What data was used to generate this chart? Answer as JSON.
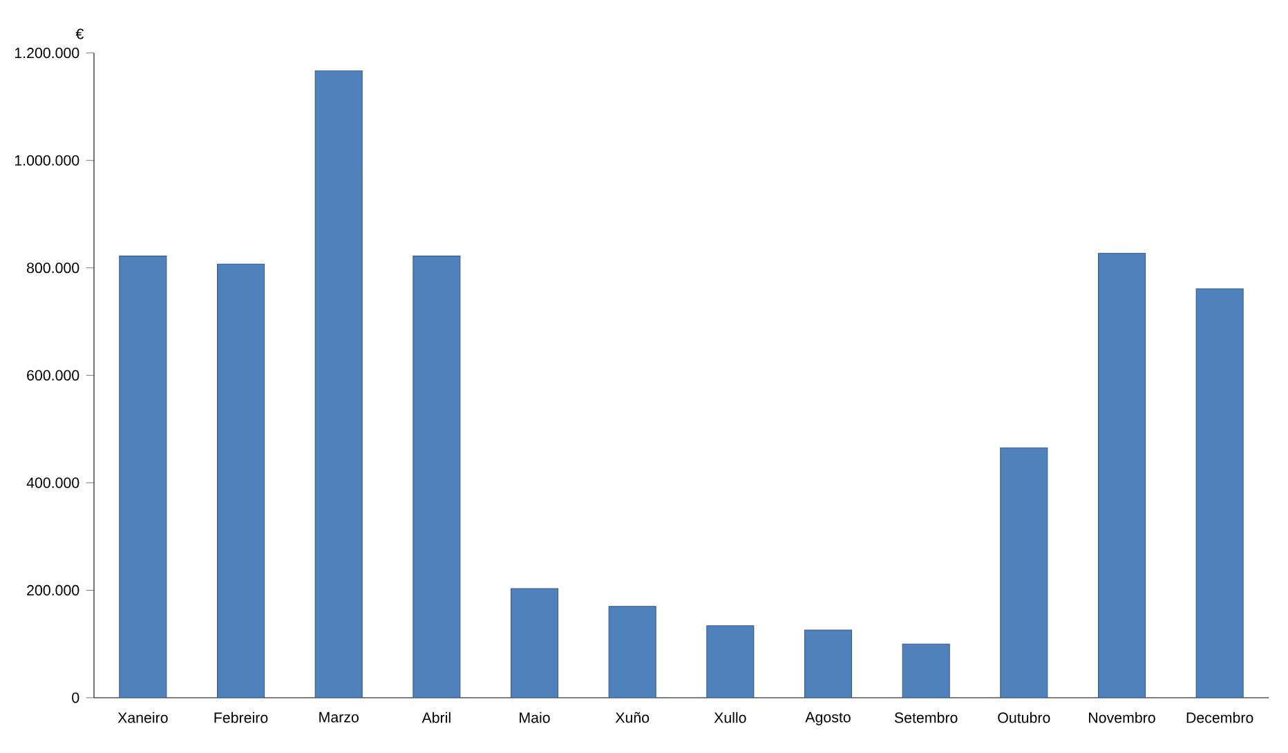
{
  "chart_data": {
    "type": "bar",
    "ylabel": "€",
    "categories": [
      "Xaneiro",
      "Febreiro",
      "Marzo",
      "Abril",
      "Maio",
      "Xuño",
      "Xullo",
      "Agosto",
      "Setembro",
      "Outubro",
      "Novembro",
      "Decembro"
    ],
    "values": [
      822000,
      807000,
      1167000,
      822000,
      203000,
      170000,
      134000,
      126000,
      100000,
      465000,
      827000,
      761000
    ],
    "color": "#4f81bd",
    "ylim": [
      0,
      1200000
    ],
    "yticks": [
      0,
      {
        "value": 200000,
        "label": "200.000"
      },
      {
        "value": 400000,
        "label": "400.000"
      },
      {
        "value": 600000,
        "label": "600.000"
      },
      {
        "value": 800000,
        "label": "800.000"
      },
      {
        "value": 1000000,
        "label": "1.000.000"
      },
      {
        "value": 1200000,
        "label": "1.200.000"
      }
    ],
    "grid": false
  }
}
